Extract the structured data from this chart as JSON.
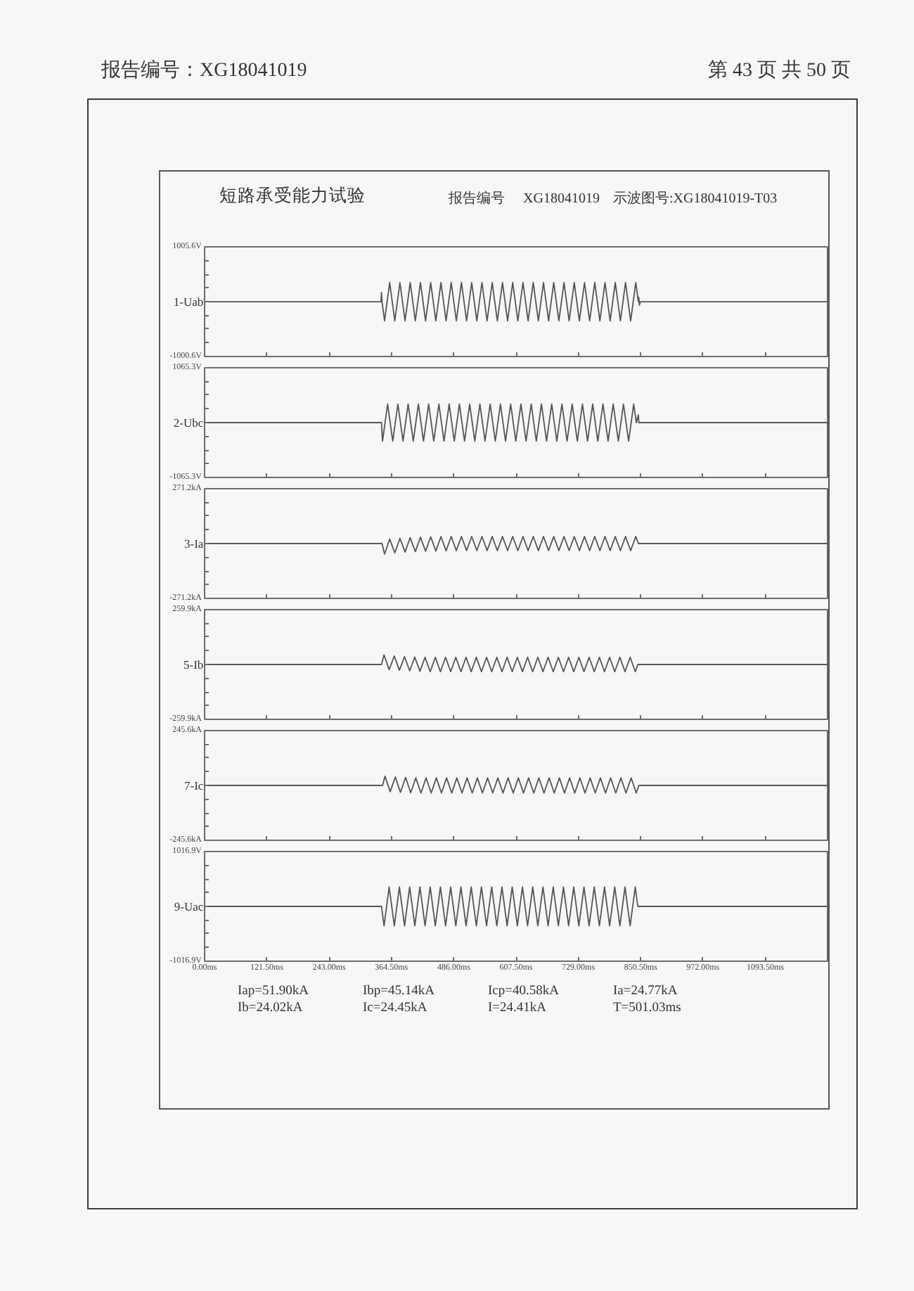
{
  "chart_data": [
    {
      "type": "line",
      "title": "短路承受能力试验",
      "annotations": [
        "报告编号：XG18041019",
        "第 43 页 共 50 页",
        "报告编号",
        "XG18041019",
        "示波图号:XG18041019-T03"
      ],
      "ylabel": "1-Uab",
      "color": "#555555",
      "xlim": [
        0,
        1215
      ],
      "ylim": [
        -1000.6,
        1005.6
      ],
      "tick_labels": "y",
      "xticks": [
        {
          "value": 0,
          "label": null
        },
        {
          "value": 121.5,
          "label": null
        },
        {
          "value": 243,
          "label": null
        },
        {
          "value": 364.5,
          "label": null
        },
        {
          "value": 486,
          "label": null
        },
        {
          "value": 607.5,
          "label": null
        },
        {
          "value": 729,
          "label": null
        },
        {
          "value": 850.5,
          "label": null
        },
        {
          "value": 972,
          "label": null
        },
        {
          "value": 1093.5,
          "label": null
        }
      ],
      "yticks": [
        {
          "value": -1000.6,
          "label": "-1000.6V"
        },
        {
          "value": -750,
          "label": null
        },
        {
          "value": -499,
          "label": null
        },
        {
          "value": -248,
          "label": null
        },
        {
          "value": 3,
          "label": null
        },
        {
          "value": 253,
          "label": null
        },
        {
          "value": 504,
          "label": null
        },
        {
          "value": 755,
          "label": null
        },
        {
          "value": 1005.6,
          "label": "1005.6V"
        }
      ],
      "x": [
        0,
        344,
        345,
        346,
        351,
        361,
        371,
        381,
        391,
        401,
        411,
        421,
        431,
        441,
        451,
        461,
        471,
        481,
        491,
        501,
        511,
        521,
        531,
        541,
        551,
        561,
        571,
        581,
        591,
        601,
        611,
        621,
        631,
        641,
        651,
        661,
        671,
        681,
        691,
        701,
        711,
        721,
        731,
        741,
        751,
        761,
        771,
        781,
        791,
        801,
        811,
        821,
        831,
        841,
        846,
        847,
        848,
        850,
        1215
      ],
      "values": [
        0,
        0,
        170,
        0,
        -350,
        350,
        -350,
        350,
        -350,
        350,
        -350,
        350,
        -350,
        350,
        -350,
        350,
        -350,
        350,
        -350,
        350,
        -350,
        350,
        -350,
        350,
        -350,
        350,
        -350,
        350,
        -350,
        350,
        -350,
        350,
        -350,
        350,
        -350,
        350,
        -350,
        350,
        -350,
        350,
        -350,
        350,
        -350,
        350,
        -350,
        350,
        -350,
        350,
        -350,
        350,
        -350,
        350,
        -350,
        350,
        0,
        80,
        -60,
        0,
        0
      ]
    },
    {
      "type": "line",
      "ylabel": "2-Ubc",
      "color": "#555555",
      "xlim": [
        0,
        1215
      ],
      "ylim": [
        -1065.3,
        1065.3
      ],
      "tick_labels": "y",
      "xticks": [
        {
          "value": 0,
          "label": null
        },
        {
          "value": 121.5,
          "label": null
        },
        {
          "value": 243,
          "label": null
        },
        {
          "value": 364.5,
          "label": null
        },
        {
          "value": 486,
          "label": null
        },
        {
          "value": 607.5,
          "label": null
        },
        {
          "value": 729,
          "label": null
        },
        {
          "value": 850.5,
          "label": null
        },
        {
          "value": 972,
          "label": null
        },
        {
          "value": 1093.5,
          "label": null
        }
      ],
      "yticks": [
        {
          "value": -1065.3,
          "label": "-1065.3V"
        },
        {
          "value": -799,
          "label": null
        },
        {
          "value": -533,
          "label": null
        },
        {
          "value": -266,
          "label": null
        },
        {
          "value": 0,
          "label": null
        },
        {
          "value": 266,
          "label": null
        },
        {
          "value": 533,
          "label": null
        },
        {
          "value": 799,
          "label": null
        },
        {
          "value": 1065.3,
          "label": "1065.3V"
        }
      ],
      "x": [
        0,
        345,
        347,
        357,
        367,
        377,
        387,
        397,
        407,
        417,
        427,
        437,
        447,
        457,
        467,
        477,
        487,
        497,
        507,
        517,
        527,
        537,
        547,
        557,
        567,
        577,
        587,
        597,
        607,
        617,
        627,
        637,
        647,
        657,
        667,
        677,
        687,
        697,
        707,
        717,
        727,
        737,
        747,
        757,
        767,
        777,
        787,
        797,
        807,
        817,
        827,
        837,
        842,
        846,
        847,
        1215
      ],
      "values": [
        0,
        0,
        -360,
        360,
        -360,
        360,
        -360,
        360,
        -360,
        360,
        -360,
        360,
        -360,
        360,
        -360,
        360,
        -360,
        360,
        -360,
        360,
        -360,
        360,
        -360,
        360,
        -360,
        360,
        -360,
        360,
        -360,
        360,
        -360,
        360,
        -360,
        360,
        -360,
        360,
        -360,
        360,
        -360,
        360,
        -360,
        360,
        -360,
        360,
        -360,
        360,
        -360,
        360,
        -360,
        360,
        -360,
        360,
        0,
        150,
        0,
        0
      ]
    },
    {
      "type": "line",
      "ylabel": "3-Ia",
      "color": "#555555",
      "xlim": [
        0,
        1215
      ],
      "ylim": [
        -271.2,
        271.2
      ],
      "tick_labels": "y",
      "xticks": [
        {
          "value": 0,
          "label": null
        },
        {
          "value": 121.5,
          "label": null
        },
        {
          "value": 243,
          "label": null
        },
        {
          "value": 364.5,
          "label": null
        },
        {
          "value": 486,
          "label": null
        },
        {
          "value": 607.5,
          "label": null
        },
        {
          "value": 729,
          "label": null
        },
        {
          "value": 850.5,
          "label": null
        },
        {
          "value": 972,
          "label": null
        },
        {
          "value": 1093.5,
          "label": null
        }
      ],
      "yticks": [
        {
          "value": -271.2,
          "label": "-271.2kA"
        },
        {
          "value": -203,
          "label": null
        },
        {
          "value": -136,
          "label": null
        },
        {
          "value": -68,
          "label": null
        },
        {
          "value": 0,
          "label": null
        },
        {
          "value": 68,
          "label": null
        },
        {
          "value": 136,
          "label": null
        },
        {
          "value": 203,
          "label": null
        },
        {
          "value": 271.2,
          "label": "271.2kA"
        }
      ],
      "x": [
        0,
        346,
        351,
        361,
        371,
        381,
        391,
        401,
        411,
        421,
        431,
        441,
        451,
        461,
        471,
        481,
        491,
        501,
        511,
        521,
        531,
        541,
        551,
        561,
        571,
        581,
        591,
        601,
        611,
        621,
        631,
        641,
        651,
        661,
        671,
        681,
        691,
        701,
        711,
        721,
        731,
        741,
        751,
        761,
        771,
        781,
        791,
        801,
        811,
        821,
        831,
        841,
        846,
        1215
      ],
      "values": [
        0,
        0,
        -52,
        22,
        -46,
        26,
        -42,
        29,
        -40,
        31,
        -38,
        33,
        -37,
        34,
        -36,
        35,
        -35,
        35,
        -35,
        35,
        -35,
        35,
        -35,
        35,
        -35,
        35,
        -35,
        35,
        -35,
        35,
        -35,
        35,
        -35,
        35,
        -35,
        35,
        -35,
        35,
        -35,
        35,
        -35,
        35,
        -35,
        35,
        -35,
        35,
        -35,
        35,
        -35,
        35,
        -35,
        35,
        0,
        0
      ]
    },
    {
      "type": "line",
      "ylabel": "5-Ib",
      "color": "#555555",
      "xlim": [
        0,
        1215
      ],
      "ylim": [
        -259.9,
        259.9
      ],
      "tick_labels": "y",
      "xticks": [
        {
          "value": 0,
          "label": null
        },
        {
          "value": 121.5,
          "label": null
        },
        {
          "value": 243,
          "label": null
        },
        {
          "value": 364.5,
          "label": null
        },
        {
          "value": 486,
          "label": null
        },
        {
          "value": 607.5,
          "label": null
        },
        {
          "value": 729,
          "label": null
        },
        {
          "value": 850.5,
          "label": null
        },
        {
          "value": 972,
          "label": null
        },
        {
          "value": 1093.5,
          "label": null
        }
      ],
      "yticks": [
        {
          "value": -259.9,
          "label": "-259.9kA"
        },
        {
          "value": -195,
          "label": null
        },
        {
          "value": -130,
          "label": null
        },
        {
          "value": -65,
          "label": null
        },
        {
          "value": 0,
          "label": null
        },
        {
          "value": 65,
          "label": null
        },
        {
          "value": 130,
          "label": null
        },
        {
          "value": 195,
          "label": null
        },
        {
          "value": 259.9,
          "label": "259.9kA"
        }
      ],
      "x": [
        0,
        345,
        350,
        360,
        370,
        380,
        390,
        400,
        410,
        420,
        430,
        440,
        450,
        460,
        470,
        480,
        490,
        500,
        510,
        520,
        530,
        540,
        550,
        560,
        570,
        580,
        590,
        600,
        610,
        620,
        630,
        640,
        650,
        660,
        670,
        680,
        690,
        700,
        710,
        720,
        730,
        740,
        750,
        760,
        770,
        780,
        790,
        800,
        810,
        820,
        830,
        840,
        845,
        1215
      ],
      "values": [
        0,
        0,
        45,
        -24,
        40,
        -27,
        37,
        -30,
        35,
        -32,
        34,
        -34,
        34,
        -34,
        34,
        -34,
        34,
        -34,
        34,
        -34,
        34,
        -34,
        34,
        -34,
        34,
        -34,
        34,
        -34,
        34,
        -34,
        34,
        -34,
        34,
        -34,
        34,
        -34,
        34,
        -34,
        34,
        -34,
        34,
        -34,
        34,
        -34,
        34,
        -34,
        34,
        -34,
        34,
        -34,
        34,
        -34,
        0,
        0
      ]
    },
    {
      "type": "line",
      "ylabel": "7-Ic",
      "color": "#555555",
      "xlim": [
        0,
        1215
      ],
      "ylim": [
        -245.6,
        245.6
      ],
      "tick_labels": "y",
      "xticks": [
        {
          "value": 0,
          "label": null
        },
        {
          "value": 121.5,
          "label": null
        },
        {
          "value": 243,
          "label": null
        },
        {
          "value": 364.5,
          "label": null
        },
        {
          "value": 486,
          "label": null
        },
        {
          "value": 607.5,
          "label": null
        },
        {
          "value": 729,
          "label": null
        },
        {
          "value": 850.5,
          "label": null
        },
        {
          "value": 972,
          "label": null
        },
        {
          "value": 1093.5,
          "label": null
        }
      ],
      "yticks": [
        {
          "value": -245.6,
          "label": "-245.6kA"
        },
        {
          "value": -184,
          "label": null
        },
        {
          "value": -123,
          "label": null
        },
        {
          "value": -61,
          "label": null
        },
        {
          "value": 0,
          "label": null
        },
        {
          "value": 61,
          "label": null
        },
        {
          "value": 123,
          "label": null
        },
        {
          "value": 184,
          "label": null
        },
        {
          "value": 245.6,
          "label": "245.6kA"
        }
      ],
      "x": [
        0,
        347,
        352,
        362,
        372,
        382,
        392,
        402,
        412,
        422,
        432,
        442,
        452,
        462,
        472,
        482,
        492,
        502,
        512,
        522,
        532,
        542,
        552,
        562,
        572,
        582,
        592,
        602,
        612,
        622,
        632,
        642,
        652,
        662,
        672,
        682,
        692,
        702,
        712,
        722,
        732,
        742,
        752,
        762,
        772,
        782,
        792,
        802,
        812,
        822,
        832,
        842,
        847,
        1215
      ],
      "values": [
        0,
        0,
        41,
        -28,
        38,
        -31,
        36,
        -33,
        34,
        -34,
        34,
        -34,
        34,
        -34,
        34,
        -34,
        34,
        -34,
        34,
        -34,
        34,
        -34,
        34,
        -34,
        34,
        -34,
        34,
        -34,
        34,
        -34,
        34,
        -34,
        34,
        -34,
        34,
        -34,
        34,
        -34,
        34,
        -34,
        34,
        -34,
        34,
        -34,
        34,
        -34,
        34,
        -34,
        34,
        -34,
        34,
        -34,
        0,
        0
      ]
    },
    {
      "type": "line",
      "ylabel": "9-Uac",
      "color": "#555555",
      "xlim": [
        0,
        1215
      ],
      "ylim": [
        -1016.9,
        1016.9
      ],
      "annotations": [
        "Iap=51.90kA",
        "Ibp=45.14kA",
        "Icp=40.58kA",
        "Ia=24.77kA",
        "Ib=24.02kA",
        "Ic=24.45kA",
        "I=24.41kA",
        "T=501.03ms"
      ],
      "xticks": [
        {
          "value": 0,
          "label": "0.00ms"
        },
        {
          "value": 121.5,
          "label": "121.50ms"
        },
        {
          "value": 243,
          "label": "243.00ms"
        },
        {
          "value": 364.5,
          "label": "364.50ms"
        },
        {
          "value": 486,
          "label": "486.00ms"
        },
        {
          "value": 607.5,
          "label": "607.50ms"
        },
        {
          "value": 729,
          "label": "729.00ms"
        },
        {
          "value": 850.5,
          "label": "850.50ms"
        },
        {
          "value": 972,
          "label": "972.00ms"
        },
        {
          "value": 1093.5,
          "label": "1093.50ms"
        }
      ],
      "yticks": [
        {
          "value": -1016.9,
          "label": "-1016.9V"
        },
        {
          "value": -763,
          "label": null
        },
        {
          "value": -508,
          "label": null
        },
        {
          "value": -254,
          "label": null
        },
        {
          "value": 0,
          "label": null
        },
        {
          "value": 254,
          "label": null
        },
        {
          "value": 508,
          "label": null
        },
        {
          "value": 763,
          "label": null
        },
        {
          "value": 1016.9,
          "label": "1016.9V"
        }
      ],
      "x": [
        0,
        345,
        350,
        360,
        370,
        380,
        390,
        400,
        410,
        420,
        430,
        440,
        450,
        460,
        470,
        480,
        490,
        500,
        510,
        520,
        530,
        540,
        550,
        560,
        570,
        580,
        590,
        600,
        610,
        620,
        630,
        640,
        650,
        660,
        670,
        680,
        690,
        700,
        710,
        720,
        730,
        740,
        750,
        760,
        770,
        780,
        790,
        800,
        810,
        820,
        830,
        840,
        845,
        1215
      ],
      "values": [
        0,
        0,
        -360,
        360,
        -360,
        360,
        -360,
        360,
        -360,
        360,
        -360,
        360,
        -360,
        360,
        -360,
        360,
        -360,
        360,
        -360,
        360,
        -360,
        360,
        -360,
        360,
        -360,
        360,
        -360,
        360,
        -360,
        360,
        -360,
        360,
        -360,
        360,
        -360,
        360,
        -360,
        360,
        -360,
        360,
        -360,
        360,
        -360,
        360,
        -360,
        360,
        -360,
        360,
        -360,
        360,
        -360,
        360,
        0,
        0
      ]
    }
  ]
}
